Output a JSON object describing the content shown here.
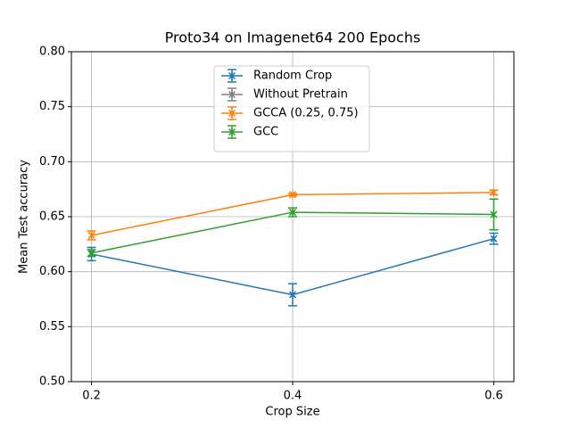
{
  "chart_data": {
    "type": "line",
    "title": "Proto34 on Imagenet64 200 Epochs",
    "x_label": "Crop Size",
    "y_label": "Mean Test accuracy",
    "x": [
      0.2,
      0.4,
      0.6
    ],
    "series": [
      {
        "name": "Random Crop",
        "color": "#1f77b4",
        "values": [
          0.616,
          0.579,
          0.63
        ],
        "errors": [
          0.006,
          0.01,
          0.005
        ]
      },
      {
        "name": "Without Pretrain",
        "color": "#7f7f7f",
        "values": [
          null,
          null,
          null
        ],
        "errors": [
          null,
          null,
          null
        ]
      },
      {
        "name": "GCCA (0.25, 0.75)",
        "color": "#ff7f0e",
        "values": [
          0.633,
          0.67,
          0.672
        ],
        "errors": [
          0.004,
          0.001,
          0.002
        ]
      },
      {
        "name": "GCC",
        "color": "#2ca02c",
        "values": [
          0.617,
          0.654,
          0.652
        ],
        "errors": [
          0.003,
          0.004,
          0.014
        ]
      }
    ],
    "xlim": [
      0.18,
      0.62
    ],
    "ylim": [
      0.5,
      0.8
    ],
    "xticks": [
      0.2,
      0.4,
      0.6
    ],
    "yticks": [
      {
        "value": 0.5,
        "label": "0.50"
      },
      0.55,
      {
        "value": 0.6,
        "label": "0.60"
      },
      0.65,
      {
        "value": 0.7,
        "label": "0.70"
      },
      0.75,
      {
        "value": 0.8,
        "label": "0.80"
      }
    ],
    "grid": true,
    "legend": "upper center"
  }
}
